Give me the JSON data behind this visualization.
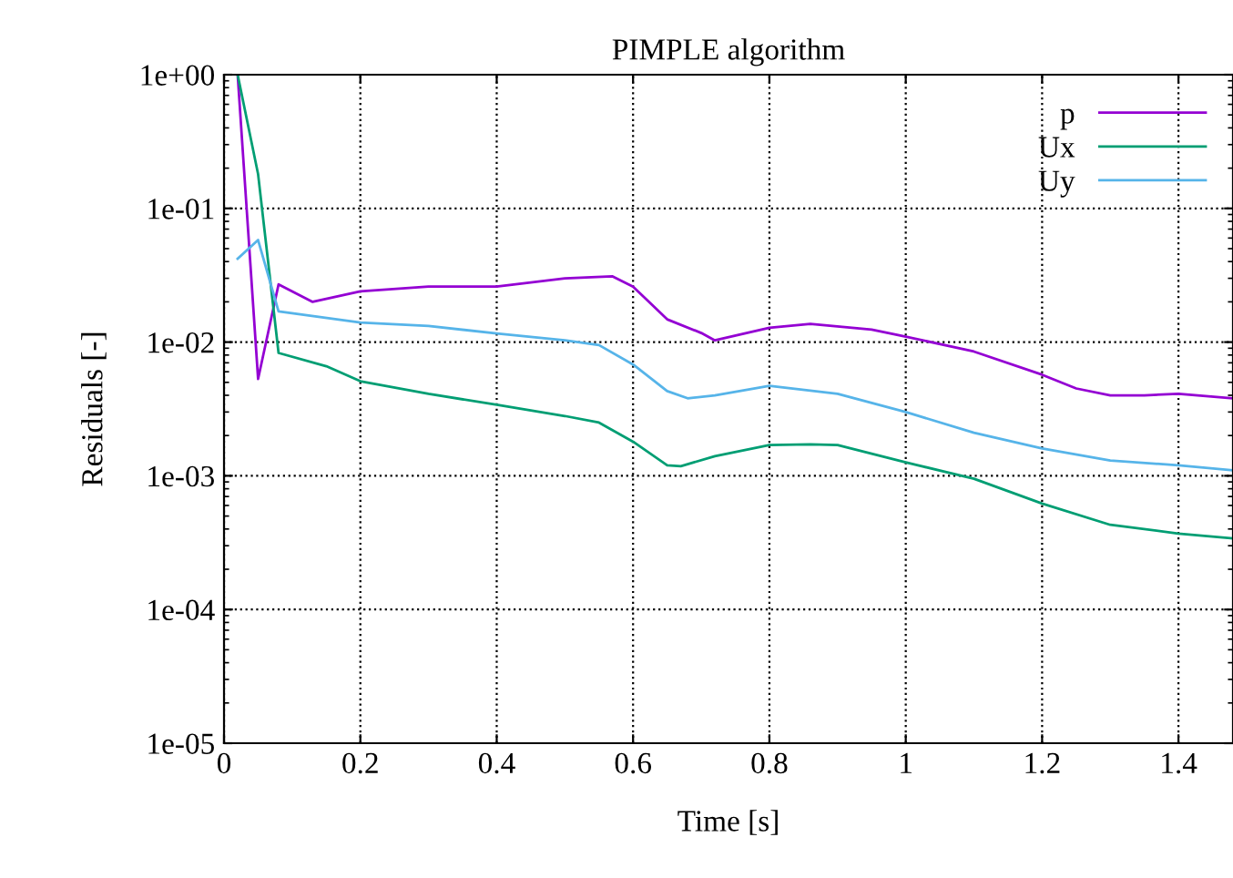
{
  "chart_data": {
    "type": "line",
    "title": "PIMPLE algorithm",
    "xlabel": "Time [s]",
    "ylabel": "Residuals [-]",
    "log": "y",
    "grid": true,
    "legend": "top right",
    "line_style": "solid",
    "marker": "none",
    "xlim": [
      0,
      1.48
    ],
    "xticks": [
      0,
      0.2,
      0.4,
      0.6,
      0.8,
      1,
      1.2,
      1.4
    ],
    "ylim": [
      1e-05,
      1
    ],
    "yticks": [
      {
        "value": 1e-05,
        "label": "1e-05"
      },
      {
        "value": 0.0001,
        "label": "1e-04"
      },
      {
        "value": 0.001,
        "label": "1e-03"
      },
      {
        "value": 0.01,
        "label": "1e-02"
      },
      {
        "value": 0.1,
        "label": "1e-01"
      },
      {
        "value": 1,
        "label": "1e+00"
      }
    ],
    "series": [
      {
        "name": "p",
        "color": "#9400d3",
        "x": [
          0.02,
          0.05,
          0.08,
          0.13,
          0.2,
          0.3,
          0.4,
          0.5,
          0.57,
          0.6,
          0.65,
          0.7,
          0.72,
          0.8,
          0.86,
          0.95,
          1.0,
          1.1,
          1.2,
          1.25,
          1.3,
          1.35,
          1.4,
          1.48
        ],
        "values": [
          1.0,
          0.0053,
          0.027,
          0.02,
          0.024,
          0.026,
          0.026,
          0.03,
          0.031,
          0.026,
          0.0148,
          0.0117,
          0.0103,
          0.0128,
          0.0137,
          0.0124,
          0.011,
          0.0085,
          0.0057,
          0.0045,
          0.004,
          0.004,
          0.0041,
          0.0038
        ]
      },
      {
        "name": "Ux",
        "color": "#009e73",
        "x": [
          0.02,
          0.05,
          0.08,
          0.15,
          0.2,
          0.3,
          0.4,
          0.5,
          0.55,
          0.6,
          0.65,
          0.67,
          0.72,
          0.8,
          0.86,
          0.9,
          1.0,
          1.1,
          1.2,
          1.3,
          1.4,
          1.48
        ],
        "values": [
          1.0,
          0.18,
          0.0083,
          0.0066,
          0.0051,
          0.0041,
          0.0034,
          0.0028,
          0.0025,
          0.0018,
          0.0012,
          0.00118,
          0.0014,
          0.0017,
          0.00172,
          0.0017,
          0.00126,
          0.00095,
          0.00062,
          0.00043,
          0.00037,
          0.00034
        ]
      },
      {
        "name": "Uy",
        "color": "#56b4e9",
        "x": [
          0.02,
          0.05,
          0.08,
          0.2,
          0.3,
          0.4,
          0.5,
          0.55,
          0.6,
          0.65,
          0.68,
          0.72,
          0.8,
          0.9,
          1.0,
          1.1,
          1.2,
          1.3,
          1.4,
          1.48
        ],
        "values": [
          0.042,
          0.058,
          0.017,
          0.014,
          0.0132,
          0.0116,
          0.0103,
          0.0095,
          0.0068,
          0.0043,
          0.0038,
          0.004,
          0.0047,
          0.0041,
          0.003,
          0.0021,
          0.0016,
          0.0013,
          0.0012,
          0.0011
        ]
      }
    ]
  }
}
